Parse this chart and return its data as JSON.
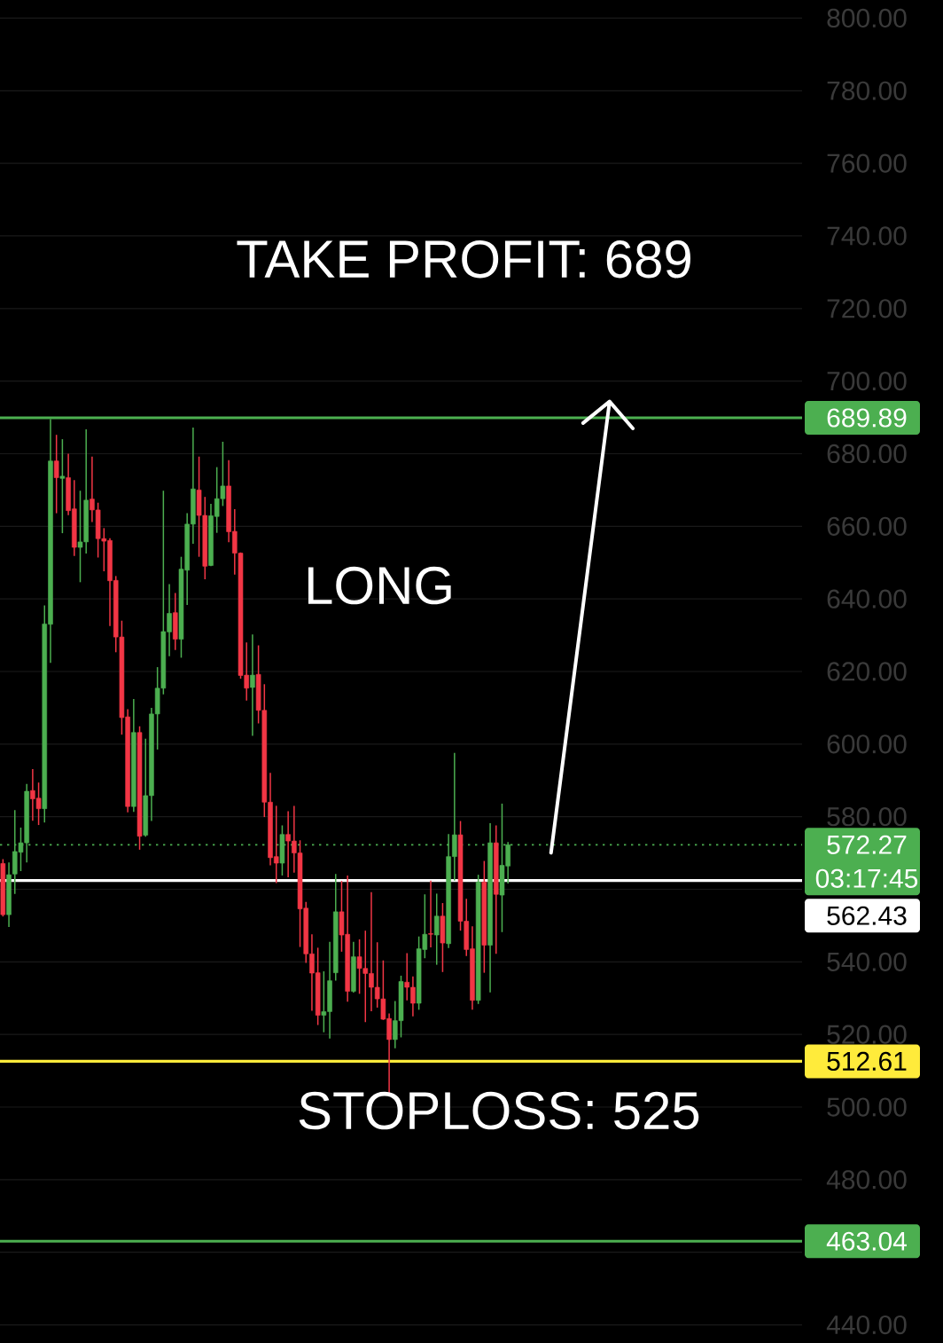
{
  "chart_data": {
    "type": "candlestick",
    "categories": [
      null,
      null,
      null,
      null,
      null,
      null,
      null,
      null,
      null,
      null,
      null,
      null,
      null,
      null,
      null,
      null,
      null,
      null,
      null,
      null,
      null,
      null,
      null,
      null,
      null,
      null,
      null,
      null,
      null,
      null,
      null,
      null,
      null,
      null,
      null,
      null,
      null,
      null,
      null,
      null,
      null,
      null,
      null,
      null,
      null,
      null,
      null,
      null,
      null,
      null,
      null,
      null,
      null,
      null,
      null,
      null,
      null,
      null,
      null,
      null,
      null,
      null,
      null,
      null,
      null,
      null,
      null,
      null,
      null,
      null,
      null,
      null,
      null,
      null,
      null,
      null,
      null,
      null,
      null,
      null,
      null,
      null,
      null,
      null,
      null,
      null,
      null,
      null,
      null,
      null,
      null,
      null,
      null,
      null,
      null,
      null,
      null,
      null,
      null,
      null,
      null,
      null,
      null,
      null,
      null,
      null,
      null,
      null,
      null,
      null,
      null,
      null,
      null,
      null,
      null,
      null,
      null,
      null,
      null,
      null,
      null,
      null,
      null,
      null,
      null,
      null,
      null,
      null,
      null,
      null,
      null,
      null,
      null,
      null,
      null
    ],
    "ohlc": [
      [
        567.1,
        568.3,
        552.5,
        553.0
      ],
      [
        553.0,
        567.4,
        549.6,
        564.0
      ],
      [
        564.2,
        581.8,
        558.7,
        570.4
      ],
      [
        570.2,
        577.0,
        565.0,
        572.8
      ],
      [
        572.8,
        589.0,
        567.4,
        587.0
      ],
      [
        587.2,
        593.1,
        578.9,
        584.9
      ],
      [
        585.1,
        589.4,
        577.7,
        582.2
      ],
      [
        582.2,
        638.2,
        578.4,
        633.1
      ],
      [
        633.0,
        689.5,
        622.4,
        678.0
      ],
      [
        678.0,
        685.2,
        663.6,
        673.4
      ],
      [
        673.2,
        684.0,
        658.1,
        673.8
      ],
      [
        673.4,
        680.0,
        663.1,
        664.3
      ],
      [
        664.8,
        672.7,
        651.8,
        654.2
      ],
      [
        654.2,
        669.8,
        644.6,
        655.7
      ],
      [
        655.7,
        686.7,
        652.5,
        667.2
      ],
      [
        667.5,
        679.2,
        661.2,
        664.5
      ],
      [
        664.5,
        666.5,
        651.4,
        656.6
      ],
      [
        656.6,
        659.5,
        647.6,
        655.9
      ],
      [
        656.1,
        656.7,
        632.5,
        645.0
      ],
      [
        645.1,
        646.3,
        625.3,
        629.5
      ],
      [
        629.5,
        634.0,
        602.6,
        607.3
      ],
      [
        607.5,
        609.6,
        581.2,
        582.8
      ],
      [
        582.8,
        612.4,
        581.3,
        603.2
      ],
      [
        603.2,
        604.9,
        570.9,
        574.6
      ],
      [
        574.9,
        601.5,
        574.5,
        585.8
      ],
      [
        585.8,
        610.0,
        578.8,
        608.3
      ],
      [
        608.3,
        621.2,
        598.5,
        615.4
      ],
      [
        615.4,
        669.8,
        613.7,
        631.0
      ],
      [
        630.9,
        644.1,
        624.2,
        636.0
      ],
      [
        636.2,
        641.6,
        625.9,
        628.9
      ],
      [
        628.9,
        651.6,
        623.8,
        648.2
      ],
      [
        647.9,
        663.6,
        638.3,
        660.6
      ],
      [
        660.6,
        687.2,
        655.2,
        670.3
      ],
      [
        670.0,
        679.2,
        651.6,
        663.0
      ],
      [
        663.0,
        668.1,
        645.4,
        649.0
      ],
      [
        649.2,
        666.2,
        649.0,
        662.9
      ],
      [
        662.7,
        676.3,
        658.2,
        667.6
      ],
      [
        667.6,
        683.3,
        665.6,
        671.1
      ],
      [
        671.1,
        678.2,
        655.6,
        658.5
      ],
      [
        658.6,
        664.7,
        646.7,
        652.6
      ],
      [
        652.6,
        652.8,
        618.0,
        618.9
      ],
      [
        619.0,
        628.0,
        612.0,
        615.4
      ],
      [
        615.6,
        630.2,
        602.3,
        619.0
      ],
      [
        619.2,
        627.2,
        605.7,
        609.3
      ],
      [
        609.3,
        616.5,
        579.9,
        584.0
      ],
      [
        584.0,
        592.1,
        566.6,
        568.7
      ],
      [
        569.0,
        583.0,
        561.7,
        567.2
      ],
      [
        567.2,
        577.6,
        563.8,
        575.1
      ],
      [
        575.1,
        581.5,
        563.3,
        573.3
      ],
      [
        573.3,
        583.0,
        564.6,
        570.0
      ],
      [
        570.0,
        573.5,
        544.1,
        554.6
      ],
      [
        554.8,
        556.5,
        539.7,
        542.2
      ],
      [
        542.2,
        547.6,
        526.5,
        536.9
      ],
      [
        537.0,
        543.9,
        522.6,
        525.3
      ],
      [
        525.3,
        537.4,
        520.6,
        526.3
      ],
      [
        526.3,
        545.5,
        518.9,
        534.8
      ],
      [
        537.0,
        564.2,
        534.8,
        553.8
      ],
      [
        553.8,
        562.3,
        542.8,
        547.4
      ],
      [
        547.6,
        563.8,
        529.0,
        531.9
      ],
      [
        531.9,
        545.5,
        531.5,
        541.4
      ],
      [
        541.4,
        546.2,
        531.2,
        538.2
      ],
      [
        538.2,
        548.6,
        523.4,
        536.8
      ],
      [
        536.8,
        559.2,
        526.4,
        533.0
      ],
      [
        533.0,
        545.4,
        527.4,
        529.8
      ],
      [
        529.8,
        540.4,
        524.0,
        524.2
      ],
      [
        524.4,
        525.8,
        503.5,
        518.6
      ],
      [
        518.6,
        529.2,
        516.2,
        523.8
      ],
      [
        523.8,
        536.2,
        519.2,
        534.6
      ],
      [
        534.4,
        542.4,
        529.4,
        533.0
      ],
      [
        533.0,
        536.0,
        525.0,
        528.6
      ],
      [
        528.6,
        547.0,
        526.8,
        543.6
      ],
      [
        543.4,
        558.6,
        541.0,
        547.6
      ],
      [
        547.8,
        562.4,
        544.0,
        547.6
      ],
      [
        547.4,
        558.8,
        539.2,
        552.6
      ],
      [
        552.6,
        556.2,
        537.2,
        545.2
      ],
      [
        545.0,
        575.2,
        543.8,
        569.0
      ],
      [
        569.0,
        597.6,
        562.4,
        575.0
      ],
      [
        575.0,
        578.8,
        548.6,
        551.2
      ],
      [
        551.2,
        557.4,
        541.6,
        543.4
      ],
      [
        543.6,
        549.8,
        526.8,
        529.4
      ],
      [
        529.4,
        564.0,
        528.4,
        562.0
      ],
      [
        562.0,
        567.8,
        537.0,
        544.6
      ],
      [
        544.6,
        578.2,
        531.6,
        572.8
      ],
      [
        572.8,
        577.6,
        542.2,
        558.6
      ],
      [
        558.4,
        583.6,
        548.2,
        566.6
      ],
      [
        566.4,
        573.0,
        561.6,
        572.27
      ],
      null,
      null,
      null,
      null,
      null,
      null,
      null,
      null,
      null,
      null,
      null,
      null,
      null,
      null,
      null,
      null,
      null,
      null,
      null,
      null,
      null,
      null,
      null,
      null,
      null,
      null,
      null,
      null,
      null,
      null,
      null,
      null,
      null,
      null,
      null,
      null,
      null,
      null,
      null,
      null,
      null,
      null,
      null,
      null,
      null,
      null,
      null,
      null,
      null
    ],
    "colors": [
      "#f23645",
      "#4caf50",
      "#4caf50",
      "#4caf50",
      "#4caf50",
      "#f23645",
      "#f23645",
      "#4caf50",
      "#4caf50",
      "#f23645",
      "#4caf50",
      "#f23645",
      "#f23645",
      "#4caf50",
      "#4caf50",
      "#f23645",
      "#f23645",
      "#f23645",
      "#f23645",
      "#f23645",
      "#f23645",
      "#f23645",
      "#4caf50",
      "#f23645",
      "#4caf50",
      "#4caf50",
      "#4caf50",
      "#4caf50",
      "#4caf50",
      "#f23645",
      "#4caf50",
      "#4caf50",
      "#4caf50",
      "#f23645",
      "#f23645",
      "#4caf50",
      "#4caf50",
      "#4caf50",
      "#f23645",
      "#f23645",
      "#f23645",
      "#f23645",
      "#4caf50",
      "#f23645",
      "#f23645",
      "#f23645",
      "#f23645",
      "#4caf50",
      "#f23645",
      "#f23645",
      "#f23645",
      "#f23645",
      "#f23645",
      "#f23645",
      "#4caf50",
      "#4caf50",
      "#4caf50",
      "#f23645",
      "#f23645",
      "#4caf50",
      "#f23645",
      "#f23645",
      "#f23645",
      "#f23645",
      "#f23645",
      "#f23645",
      "#4caf50",
      "#4caf50",
      "#f23645",
      "#f23645",
      "#4caf50",
      "#4caf50",
      "#f23645",
      "#4caf50",
      "#f23645",
      "#4caf50",
      "#4caf50",
      "#f23645",
      "#f23645",
      "#f23645",
      "#4caf50",
      "#f23645",
      "#4caf50",
      "#f23645",
      "#4caf50",
      "#4caf50",
      null,
      null,
      null,
      null,
      null,
      null,
      null,
      null,
      null,
      null,
      null,
      null,
      null,
      null,
      null,
      null,
      null,
      null,
      null,
      null,
      null,
      null,
      null,
      null,
      null,
      null,
      null,
      null,
      null,
      null,
      null,
      null,
      null,
      null,
      null,
      null,
      null,
      null,
      null,
      null,
      null,
      null,
      null,
      null,
      null,
      null,
      null,
      null,
      null
    ],
    "ylim": [
      435,
      805
    ],
    "yticks": [
      {
        "value": 440,
        "label": "440.00"
      },
      {
        "value": 460,
        "label": null
      },
      {
        "value": 480,
        "label": "480.00"
      },
      {
        "value": 500,
        "label": "500.00"
      },
      {
        "value": 520,
        "label": "520.00"
      },
      {
        "value": 540,
        "label": "540.00"
      },
      {
        "value": 560,
        "label": null
      },
      {
        "value": 580,
        "label": "580.00"
      },
      {
        "value": 600,
        "label": "600.00"
      },
      {
        "value": 620,
        "label": "620.00"
      },
      {
        "value": 640,
        "label": "640.00"
      },
      {
        "value": 660,
        "label": "660.00"
      },
      {
        "value": 680,
        "label": "680.00"
      },
      {
        "value": 700,
        "label": "700.00"
      },
      {
        "value": 720,
        "label": "720.00"
      },
      {
        "value": 740,
        "label": "740.00"
      },
      {
        "value": 760,
        "label": "760.00"
      },
      {
        "value": 780,
        "label": "780.00"
      },
      {
        "value": 800,
        "label": "800.00"
      }
    ],
    "grid": "y",
    "tick_labels": "y",
    "ref_lines": [
      {
        "axis": "y",
        "value": 689.89,
        "label": "689.89",
        "color": "#4caf50"
      },
      {
        "axis": "y",
        "value": 572.27,
        "label": "572.27",
        "color": "#4caf50",
        "line_style": "dotted"
      },
      {
        "axis": "y",
        "value": 562.43,
        "label": "562.43",
        "color": "#ffffff"
      },
      {
        "axis": "y",
        "value": 512.61,
        "label": "512.61",
        "color": "#ffeb3b"
      },
      {
        "axis": "y",
        "value": 463.04,
        "label": "463.04",
        "color": "#4caf50"
      }
    ],
    "annotations": [
      "TAKE PROFIT: 689",
      "LONG",
      "STOPLOSS: 525",
      "03:17:45"
    ]
  }
}
